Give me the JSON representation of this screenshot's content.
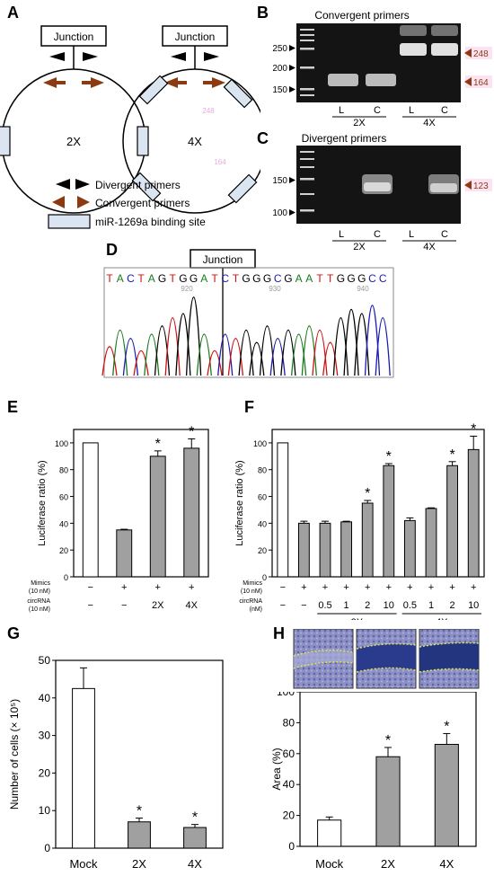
{
  "panels": {
    "A": {
      "label": "A",
      "junction": "Junction",
      "plasmid_2x": "2X",
      "plasmid_4x": "4X",
      "faint_label_4x": "248",
      "faint_label_bottom": "164",
      "legend": {
        "divergent": "Divergent primers",
        "convergent": "Convergent primers",
        "binding": "miR-1269a binding site"
      }
    },
    "B": {
      "label": "B",
      "title": "Convergent primers",
      "ladder": [
        "250",
        "200",
        "150"
      ],
      "bands": [
        "248",
        "164"
      ],
      "lanes": [
        "L",
        "C",
        "L",
        "C"
      ],
      "groups": [
        "2X",
        "4X"
      ]
    },
    "C": {
      "label": "C",
      "title": "Divergent primers",
      "ladder": [
        "150",
        "100"
      ],
      "bands": [
        "123"
      ],
      "lanes": [
        "L",
        "C",
        "L",
        "C"
      ],
      "groups": [
        "2X",
        "4X"
      ]
    },
    "D": {
      "label": "D",
      "junction": "Junction",
      "sequence": [
        "T",
        "A",
        "C",
        "T",
        "A",
        "G",
        "T",
        "G",
        "G",
        "A",
        "T",
        "C",
        "T",
        "G",
        "G",
        "G",
        "C",
        "G",
        "A",
        "A",
        "T",
        "T",
        "G",
        "G",
        "G",
        "C",
        "C"
      ],
      "positions": [
        "920",
        "930",
        "940"
      ]
    },
    "E": {
      "label": "E"
    },
    "F": {
      "label": "F"
    },
    "G": {
      "label": "G"
    },
    "H": {
      "label": "H"
    }
  },
  "colors": {
    "A": "#1a7a1a",
    "C": "#1a1ab0",
    "G": "#000000",
    "T": "#d01010",
    "convergent_arrow": "#8b3a12",
    "binding_site": "#dbe5f1",
    "bar_gray": "#a0a0a0"
  },
  "chart_data": [
    {
      "panel": "E",
      "type": "bar",
      "ylabel": "Luciferase ratio (%)",
      "ylim": [
        0,
        110
      ],
      "yticks": [
        "0",
        "20",
        "40",
        "60",
        "80",
        "100"
      ],
      "row_labels": {
        "mimics": [
          "Mimics",
          "(10 nM)"
        ],
        "circ": [
          "circRNA",
          "(10 nM)"
        ]
      },
      "categories": [
        "1",
        "2",
        "3",
        "4"
      ],
      "mimics": [
        "−",
        "+",
        "+",
        "+"
      ],
      "circ": [
        "−",
        "−",
        "2X",
        "4X"
      ],
      "values": [
        100,
        35,
        90,
        96
      ],
      "errors": [
        0,
        0.5,
        4,
        7
      ],
      "fill": [
        "white",
        "gray",
        "gray",
        "gray"
      ],
      "significant": [
        false,
        false,
        true,
        true
      ],
      "star": "*"
    },
    {
      "panel": "F",
      "type": "bar",
      "ylabel": "Luciferase ratio (%)",
      "ylim": [
        0,
        110
      ],
      "yticks": [
        "0",
        "20",
        "40",
        "60",
        "80",
        "100"
      ],
      "row_labels": {
        "mimics": [
          "Mimics",
          "(10 nM)"
        ],
        "circ": [
          "circRNA",
          "(nM)"
        ]
      },
      "categories": [
        "1",
        "2",
        "3",
        "4",
        "5",
        "6",
        "7",
        "8",
        "9",
        "10"
      ],
      "mimics": [
        "−",
        "+",
        "+",
        "+",
        "+",
        "+",
        "+",
        "+",
        "+",
        "+"
      ],
      "circ": [
        "−",
        "−",
        "0.5",
        "1",
        "2",
        "10",
        "0.5",
        "1",
        "2",
        "10"
      ],
      "groups": [
        {
          "name": "2X",
          "from": 2,
          "to": 5
        },
        {
          "name": "4X",
          "from": 6,
          "to": 9
        }
      ],
      "values": [
        100,
        40,
        40,
        41,
        55,
        83,
        42,
        51,
        83,
        95
      ],
      "errors": [
        0,
        1.5,
        1.5,
        0.5,
        2,
        1.5,
        2,
        0.5,
        3,
        10
      ],
      "fill": [
        "white",
        "gray",
        "gray",
        "gray",
        "gray",
        "gray",
        "gray",
        "gray",
        "gray",
        "gray"
      ],
      "significant": [
        false,
        false,
        false,
        false,
        true,
        true,
        false,
        false,
        true,
        true
      ],
      "star": "*"
    },
    {
      "panel": "G",
      "type": "bar",
      "ylabel": "Number of cells (× 10⁵)",
      "ylim": [
        0,
        50
      ],
      "yticks": [
        "0",
        "10",
        "20",
        "30",
        "40",
        "50"
      ],
      "categories": [
        "Mock",
        "2X",
        "4X"
      ],
      "values": [
        42.5,
        7,
        5.5
      ],
      "errors": [
        5.5,
        1,
        0.8
      ],
      "fill": [
        "white",
        "gray",
        "gray"
      ],
      "significant": [
        false,
        true,
        true
      ],
      "star": "*"
    },
    {
      "panel": "H",
      "type": "bar",
      "ylabel": "Area (%)",
      "ylim": [
        0,
        100
      ],
      "yticks": [
        "0",
        "20",
        "40",
        "60",
        "80",
        "100"
      ],
      "categories": [
        "Mock",
        "2X",
        "4X"
      ],
      "values": [
        17,
        58,
        66
      ],
      "errors": [
        2,
        6,
        7
      ],
      "fill": [
        "white",
        "gray",
        "gray"
      ],
      "significant": [
        false,
        true,
        true
      ],
      "star": "*"
    }
  ]
}
